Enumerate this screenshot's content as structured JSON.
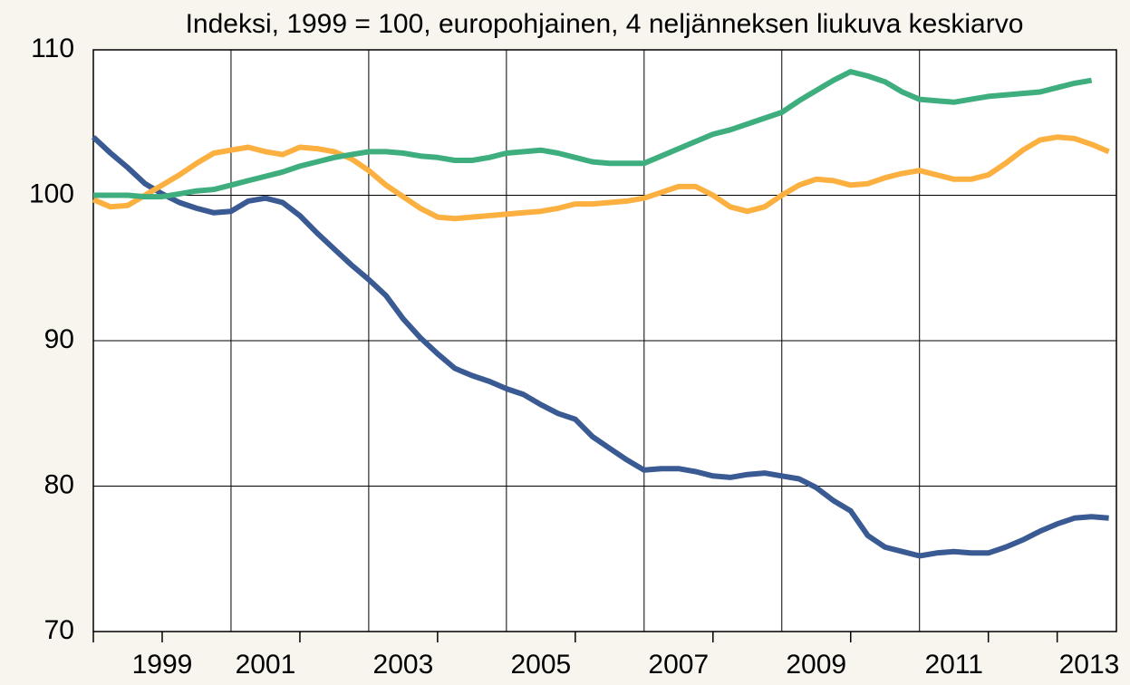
{
  "chart_data": {
    "type": "line",
    "title": "Indeksi, 1999 = 100, europohjainen, 4 neljänneksen liukuva keskiarvo",
    "x": [
      1999,
      1999.25,
      1999.5,
      1999.75,
      2000,
      2000.25,
      2000.5,
      2000.75,
      2001,
      2001.25,
      2001.5,
      2001.75,
      2002,
      2002.25,
      2002.5,
      2002.75,
      2003,
      2003.25,
      2003.5,
      2003.75,
      2004,
      2004.25,
      2004.5,
      2004.75,
      2005,
      2005.25,
      2005.5,
      2005.75,
      2006,
      2006.25,
      2006.5,
      2006.75,
      2007,
      2007.25,
      2007.5,
      2007.75,
      2008,
      2008.25,
      2008.5,
      2008.75,
      2009,
      2009.25,
      2009.5,
      2009.75,
      2010,
      2010.25,
      2010.5,
      2010.75,
      2011,
      2011.25,
      2011.5,
      2011.75,
      2012,
      2012.25,
      2012.5,
      2012.75,
      2013,
      2013.25,
      2013.5,
      2013.75
    ],
    "series": [
      {
        "color": "#3a5a93",
        "values": [
          104.0,
          102.9,
          101.9,
          100.8,
          100.1,
          99.5,
          99.1,
          98.8,
          98.9,
          99.6,
          99.8,
          99.5,
          98.6,
          97.4,
          96.3,
          95.2,
          94.2,
          93.1,
          91.5,
          90.2,
          89.1,
          88.1,
          87.6,
          87.2,
          86.7,
          86.3,
          85.6,
          85.0,
          84.6,
          83.4,
          82.6,
          81.8,
          81.1,
          81.2,
          81.2,
          81.0,
          80.7,
          80.6,
          80.8,
          80.9,
          80.7,
          80.5,
          79.9,
          79.0,
          78.3,
          76.6,
          75.8,
          75.5,
          75.2,
          75.4,
          75.5,
          75.4,
          75.4,
          75.8,
          76.3,
          76.9,
          77.4,
          77.8,
          77.9,
          77.8
        ]
      },
      {
        "color": "#fbb040",
        "values": [
          99.7,
          99.2,
          99.3,
          100.0,
          100.7,
          101.4,
          102.2,
          102.9,
          103.1,
          103.3,
          103.0,
          102.8,
          103.3,
          103.2,
          103.0,
          102.5,
          101.7,
          100.7,
          99.9,
          99.1,
          98.5,
          98.4,
          98.5,
          98.6,
          98.7,
          98.8,
          98.9,
          99.1,
          99.4,
          99.4,
          99.5,
          99.6,
          99.8,
          100.2,
          100.6,
          100.6,
          100.0,
          99.2,
          98.9,
          99.2,
          100.0,
          100.7,
          101.1,
          101.0,
          100.7,
          100.8,
          101.2,
          101.5,
          101.7,
          101.4,
          101.1,
          101.1,
          101.4,
          102.2,
          103.1,
          103.8,
          104.0,
          103.9,
          103.5,
          103.0
        ]
      },
      {
        "color": "#3fae7f",
        "values": [
          100.0,
          100.0,
          100.0,
          99.9,
          99.9,
          100.1,
          100.3,
          100.4,
          100.7,
          101.0,
          101.3,
          101.6,
          102.0,
          102.3,
          102.6,
          102.8,
          103.0,
          103.0,
          102.9,
          102.7,
          102.6,
          102.4,
          102.4,
          102.6,
          102.9,
          103.0,
          103.1,
          102.9,
          102.6,
          102.3,
          102.2,
          102.2,
          102.2,
          102.7,
          103.2,
          103.7,
          104.2,
          104.5,
          104.9,
          105.3,
          105.7,
          106.5,
          107.2,
          107.9,
          108.5,
          108.2,
          107.8,
          107.1,
          106.6,
          106.5,
          106.4,
          106.6,
          106.8,
          106.9,
          107.0,
          107.1,
          107.4,
          107.7,
          107.9,
          null
        ]
      }
    ],
    "xlim": [
      1999,
      2013.86
    ],
    "xticks": [
      1999,
      2001,
      2003,
      2005,
      2007,
      2009,
      2011,
      2013
    ],
    "x_minor_ticks": [
      2000,
      2002,
      2004,
      2006,
      2008,
      2010,
      2012
    ],
    "ylim": [
      70,
      110
    ],
    "yticks": [
      70,
      80,
      90,
      100,
      110
    ],
    "grid": true
  }
}
